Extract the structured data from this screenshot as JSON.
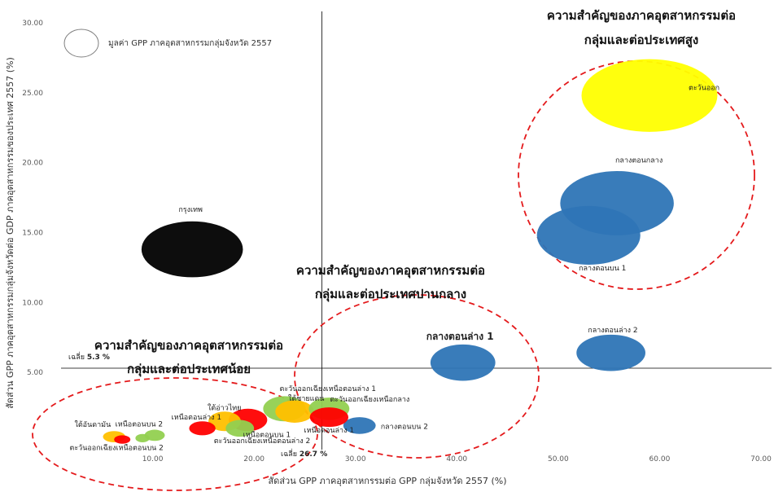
{
  "chart_data": {
    "type": "bubble",
    "xlabel": "สัดส่วน GPP ภาคอุตสาหกรรมต่อ GPP กลุ่มจังหวัด 2557  (%)",
    "ylabel": "สัดส่วน GPP ภาคอุตสาหกรรมกลุ่มจังหวัดต่อ GDP ภาคอุตสาหกรรมของประเทศ 2557  (%)",
    "xlim": [
      0,
      70
    ],
    "ylim": [
      0,
      30
    ],
    "x_ticks": [
      "10.00",
      "20.00",
      "30.00",
      "40.00",
      "50.00",
      "60.00",
      "70.00"
    ],
    "y_ticks": [
      "5.00",
      "10.00",
      "15.00",
      "20.00",
      "25.00",
      "30.00"
    ],
    "legend_text": "มูลค่า GPP ภาคอุตสาหกรรมกลุ่มจังหวัด 2557",
    "averages": {
      "x": {
        "prefix": "เฉลี่ย ",
        "value_text": "26.7 %",
        "value": 26.7
      },
      "y": {
        "prefix": "เฉลี่ย ",
        "value_text": "5.3 %",
        "value": 5.3
      }
    },
    "groups": [
      {
        "title_line1": "ความสำคัญของภาคอุตสาหกรรมต่อ",
        "title_line2": "กลุ่มและต่อประเทศสูง"
      },
      {
        "title_line1": "ความสำคัญของภาคอุตสาหกรรมต่อ",
        "title_line2": "กลุ่มและต่อประเทศปานกลาง"
      },
      {
        "title_line1": "ความสำคัญของภาคอุตสาหกรรมต่อ",
        "title_line2": "กลุ่มและต่อประเทศน้อย"
      }
    ],
    "colors": {
      "yellow": "#ffff00",
      "blue": "#2e75b6",
      "black": "#000000",
      "red": "#ff0000",
      "orange": "#ffc000",
      "green": "#92d050",
      "group_outline": "#e41a1c"
    },
    "points": [
      {
        "label": "ตะวันออก",
        "x": 59.0,
        "y": 24.8,
        "rx": 6.7,
        "ry": 2.6,
        "color": "yellow"
      },
      {
        "label": "กลางตอนกลาง",
        "x": 55.8,
        "y": 17.1,
        "rx": 5.6,
        "ry": 2.3,
        "color": "blue"
      },
      {
        "label": "กลางตอนบน 1",
        "x": 53.0,
        "y": 14.8,
        "rx": 5.1,
        "ry": 2.1,
        "color": "blue"
      },
      {
        "label": "กรุงเทพ",
        "x": 13.9,
        "y": 13.8,
        "rx": 5.0,
        "ry": 2.0,
        "color": "black"
      },
      {
        "label": "กลางตอนล่าง 2",
        "x": 55.2,
        "y": 6.4,
        "rx": 3.4,
        "ry": 1.3,
        "color": "blue"
      },
      {
        "label": "กลางตอนล่าง  1",
        "x": 40.6,
        "y": 5.7,
        "rx": 3.2,
        "ry": 1.3,
        "color": "blue"
      },
      {
        "label": "กลางตอนบน 2",
        "x": 30.4,
        "y": 1.2,
        "rx": 1.6,
        "ry": 0.6,
        "color": "blue"
      },
      {
        "label": "ตะวันออกเฉียงเหนือตอนล่าง 1",
        "x": 23.0,
        "y": 2.4,
        "rx": 2.1,
        "ry": 0.9,
        "color": "green"
      },
      {
        "label": "ใต้ชายแดน",
        "x": 24.0,
        "y": 2.2,
        "rx": 1.9,
        "ry": 0.8,
        "color": "orange"
      },
      {
        "label": "ตะวันออกเฉียงเหนือกลาง",
        "x": 27.4,
        "y": 2.4,
        "rx": 2.0,
        "ry": 0.8,
        "color": "green"
      },
      {
        "label": "เหนือตอนล่าง 1",
        "x": 27.4,
        "y": 1.8,
        "rx": 1.9,
        "ry": 0.7,
        "color": "red"
      },
      {
        "label": "เหนือตอนบน 1",
        "x": 19.4,
        "y": 1.6,
        "rx": 1.9,
        "ry": 0.8,
        "color": "red"
      },
      {
        "label": "ใต้อ่าวไทย",
        "x": 17.1,
        "y": 1.5,
        "rx": 1.6,
        "ry": 0.7,
        "color": "orange"
      },
      {
        "label": "ตะวันออกเฉียงเหนือตอนล่าง 2",
        "x": 18.6,
        "y": 1.0,
        "rx": 1.4,
        "ry": 0.6,
        "color": "green"
      },
      {
        "label": "เหนือตอนล่าง 1",
        "x": 14.9,
        "y": 1.0,
        "rx": 1.3,
        "ry": 0.5,
        "color": "red"
      },
      {
        "label": "เหนือตอนบน 2",
        "x": 10.2,
        "y": 0.5,
        "rx": 1.0,
        "ry": 0.4,
        "color": "green"
      },
      {
        "label": "ใต้อันดามัน",
        "x": 6.2,
        "y": 0.4,
        "rx": 1.1,
        "ry": 0.4,
        "color": "orange"
      },
      {
        "label": "ตะวันออกเฉียงเหนือตอนบน 2",
        "x": 7.0,
        "y": 0.2,
        "rx": 0.8,
        "ry": 0.3,
        "color": "red"
      },
      {
        "label": "",
        "x": 9.0,
        "y": 0.3,
        "rx": 0.7,
        "ry": 0.3,
        "color": "green"
      }
    ]
  }
}
